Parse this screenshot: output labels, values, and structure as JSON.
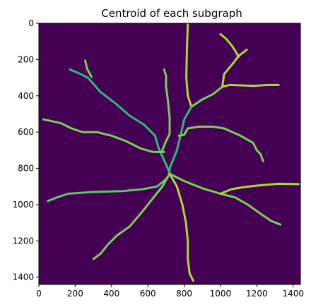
{
  "chart_data": {
    "type": "heatmap",
    "title": "Centroid of each subgraph",
    "xlim": [
      0,
      1440
    ],
    "ylim": [
      1440,
      0
    ],
    "x_ticks": [
      0,
      200,
      400,
      600,
      800,
      1000,
      1200,
      1400
    ],
    "y_ticks": [
      0,
      200,
      400,
      600,
      800,
      1000,
      1200,
      1400
    ],
    "background_color": "#440154",
    "colormap": "viridis",
    "branches": [
      {
        "points": [
          [
            820,
            5
          ],
          [
            815,
            150
          ],
          [
            812,
            300
          ],
          [
            820,
            400
          ],
          [
            840,
            460
          ]
        ],
        "color": "#a8db34"
      },
      {
        "points": [
          [
            840,
            460
          ],
          [
            900,
            420
          ],
          [
            960,
            390
          ],
          [
            1010,
            350
          ]
        ],
        "color": "#7ad151"
      },
      {
        "points": [
          [
            1010,
            350
          ],
          [
            1020,
            280
          ],
          [
            1070,
            220
          ],
          [
            1100,
            180
          ],
          [
            1145,
            145
          ]
        ],
        "color": "#a8db34"
      },
      {
        "points": [
          [
            1010,
            350
          ],
          [
            1050,
            340
          ],
          [
            1180,
            345
          ],
          [
            1270,
            340
          ],
          [
            1320,
            340
          ]
        ],
        "color": "#a8db34"
      },
      {
        "points": [
          [
            1000,
            60
          ],
          [
            1030,
            85
          ],
          [
            1060,
            120
          ],
          [
            1080,
            150
          ],
          [
            1100,
            185
          ]
        ],
        "color": "#a8db34"
      },
      {
        "points": [
          [
            840,
            460
          ],
          [
            800,
            530
          ],
          [
            780,
            620
          ],
          [
            760,
            700
          ],
          [
            720,
            800
          ],
          [
            720,
            830
          ]
        ],
        "color": "#35b779"
      },
      {
        "points": [
          [
            770,
            620
          ],
          [
            800,
            615
          ],
          [
            820,
            580
          ],
          [
            880,
            570
          ],
          [
            960,
            570
          ],
          [
            1020,
            580
          ],
          [
            1110,
            620
          ],
          [
            1180,
            660
          ],
          [
            1200,
            700
          ],
          [
            1220,
            720
          ],
          [
            1235,
            760
          ]
        ],
        "color": "#7ad151"
      },
      {
        "points": [
          [
            170,
            255
          ],
          [
            220,
            275
          ],
          [
            270,
            300
          ],
          [
            340,
            380
          ],
          [
            420,
            440
          ],
          [
            500,
            510
          ],
          [
            580,
            560
          ],
          [
            640,
            620
          ],
          [
            660,
            690
          ],
          [
            710,
            800
          ],
          [
            720,
            830
          ]
        ],
        "color": "#35b779"
      },
      {
        "points": [
          [
            255,
            205
          ],
          [
            265,
            250
          ],
          [
            290,
            295
          ]
        ],
        "color": "#7ad151"
      },
      {
        "points": [
          [
            690,
            255
          ],
          [
            700,
            290
          ],
          [
            700,
            350
          ],
          [
            710,
            420
          ],
          [
            720,
            520
          ],
          [
            720,
            610
          ],
          [
            700,
            650
          ],
          [
            680,
            700
          ]
        ],
        "color": "#7ad151"
      },
      {
        "points": [
          [
            25,
            530
          ],
          [
            120,
            550
          ],
          [
            180,
            580
          ],
          [
            240,
            600
          ],
          [
            320,
            600
          ],
          [
            400,
            620
          ],
          [
            480,
            650
          ],
          [
            560,
            690
          ],
          [
            630,
            710
          ],
          [
            690,
            710
          ]
        ],
        "color": "#7ad151"
      },
      {
        "points": [
          [
            720,
            830
          ],
          [
            700,
            860
          ],
          [
            650,
            900
          ],
          [
            570,
            915
          ],
          [
            460,
            925
          ],
          [
            300,
            930
          ],
          [
            160,
            940
          ],
          [
            100,
            960
          ],
          [
            50,
            980
          ]
        ],
        "color": "#5ec962"
      },
      {
        "points": [
          [
            720,
            830
          ],
          [
            680,
            900
          ],
          [
            640,
            950
          ],
          [
            600,
            1000
          ],
          [
            560,
            1050
          ],
          [
            500,
            1120
          ],
          [
            430,
            1170
          ],
          [
            380,
            1220
          ],
          [
            340,
            1270
          ],
          [
            300,
            1300
          ]
        ],
        "color": "#7ad151"
      },
      {
        "points": [
          [
            720,
            830
          ],
          [
            760,
            900
          ],
          [
            790,
            1000
          ],
          [
            810,
            1100
          ],
          [
            820,
            1200
          ],
          [
            820,
            1300
          ],
          [
            830,
            1380
          ],
          [
            850,
            1420
          ]
        ],
        "color": "#a8db34"
      },
      {
        "points": [
          [
            720,
            830
          ],
          [
            800,
            870
          ],
          [
            900,
            910
          ],
          [
            1000,
            940
          ],
          [
            1080,
            960
          ],
          [
            1150,
            1000
          ],
          [
            1220,
            1050
          ],
          [
            1280,
            1090
          ],
          [
            1330,
            1110
          ]
        ],
        "color": "#7ad151"
      },
      {
        "points": [
          [
            1000,
            940
          ],
          [
            1060,
            915
          ],
          [
            1120,
            905
          ],
          [
            1200,
            895
          ],
          [
            1320,
            885
          ],
          [
            1430,
            887
          ]
        ],
        "color": "#a8db34"
      }
    ]
  }
}
